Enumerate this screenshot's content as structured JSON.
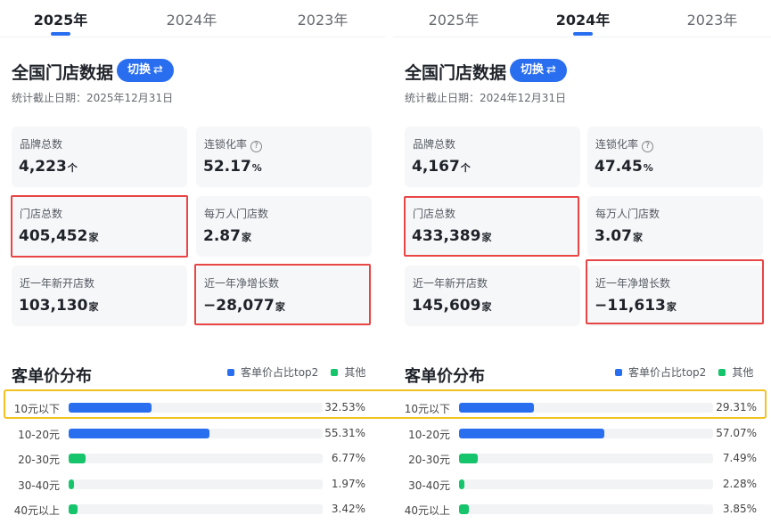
{
  "colors": {
    "accent": "#2a6ef0",
    "bar_top2": "#2a6ef0",
    "bar_other": "#16c46b",
    "highlight_red": "#e84545",
    "highlight_yellow": "#f2c21f"
  },
  "panels": [
    {
      "tabs": [
        {
          "label": "2025年",
          "active": true
        },
        {
          "label": "2024年",
          "active": false
        },
        {
          "label": "2023年",
          "active": false
        }
      ],
      "title": "全国门店数据",
      "switch_label": "切换",
      "switch_icon": "swap-arrows-icon",
      "cutoff": "统计截止日期：2025年12月31日",
      "cards": [
        {
          "label": "品牌总数",
          "value": "4,223",
          "unit": "个"
        },
        {
          "label": "连锁化率",
          "value": "52.17",
          "unit": "%",
          "icon": "help-icon"
        },
        {
          "label": "门店总数",
          "value": "405,452",
          "unit": "家"
        },
        {
          "label": "每万人门店数",
          "value": "2.87",
          "unit": "家"
        },
        {
          "label": "近一年新开店数",
          "value": "103,130",
          "unit": "家"
        },
        {
          "label": "近一年净增长数",
          "value": "−28,077",
          "unit": "家"
        }
      ],
      "dist_title": "客单价分布",
      "legend": [
        {
          "label": "客单价占比top2"
        },
        {
          "label": "其他"
        }
      ],
      "rows": [
        {
          "label": "10元以下",
          "pct_text": "32.53%",
          "pct": 32.53,
          "top2": true
        },
        {
          "label": "10-20元",
          "pct_text": "55.31%",
          "pct": 55.31,
          "top2": true
        },
        {
          "label": "20-30元",
          "pct_text": "6.77%",
          "pct": 6.77,
          "top2": false
        },
        {
          "label": "30-40元",
          "pct_text": "1.97%",
          "pct": 1.97,
          "top2": false
        },
        {
          "label": "40元以上",
          "pct_text": "3.42%",
          "pct": 3.42,
          "top2": false
        }
      ]
    },
    {
      "tabs": [
        {
          "label": "2025年",
          "active": false
        },
        {
          "label": "2024年",
          "active": true
        },
        {
          "label": "2023年",
          "active": false
        }
      ],
      "title": "全国门店数据",
      "switch_label": "切换",
      "switch_icon": "swap-arrows-icon",
      "cutoff": "统计截止日期：2024年12月31日",
      "cards": [
        {
          "label": "品牌总数",
          "value": "4,167",
          "unit": "个"
        },
        {
          "label": "连锁化率",
          "value": "47.45",
          "unit": "%",
          "icon": "help-icon"
        },
        {
          "label": "门店总数",
          "value": "433,389",
          "unit": "家"
        },
        {
          "label": "每万人门店数",
          "value": "3.07",
          "unit": "家"
        },
        {
          "label": "近一年新开店数",
          "value": "145,609",
          "unit": "家"
        },
        {
          "label": "近一年净增长数",
          "value": "−11,613",
          "unit": "家"
        }
      ],
      "dist_title": "客单价分布",
      "legend": [
        {
          "label": "客单价占比top2"
        },
        {
          "label": "其他"
        }
      ],
      "rows": [
        {
          "label": "10元以下",
          "pct_text": "29.31%",
          "pct": 29.31,
          "top2": true
        },
        {
          "label": "10-20元",
          "pct_text": "57.07%",
          "pct": 57.07,
          "top2": true
        },
        {
          "label": "20-30元",
          "pct_text": "7.49%",
          "pct": 7.49,
          "top2": false
        },
        {
          "label": "30-40元",
          "pct_text": "2.28%",
          "pct": 2.28,
          "top2": false
        },
        {
          "label": "40元以上",
          "pct_text": "3.85%",
          "pct": 3.85,
          "top2": false
        }
      ]
    }
  ]
}
